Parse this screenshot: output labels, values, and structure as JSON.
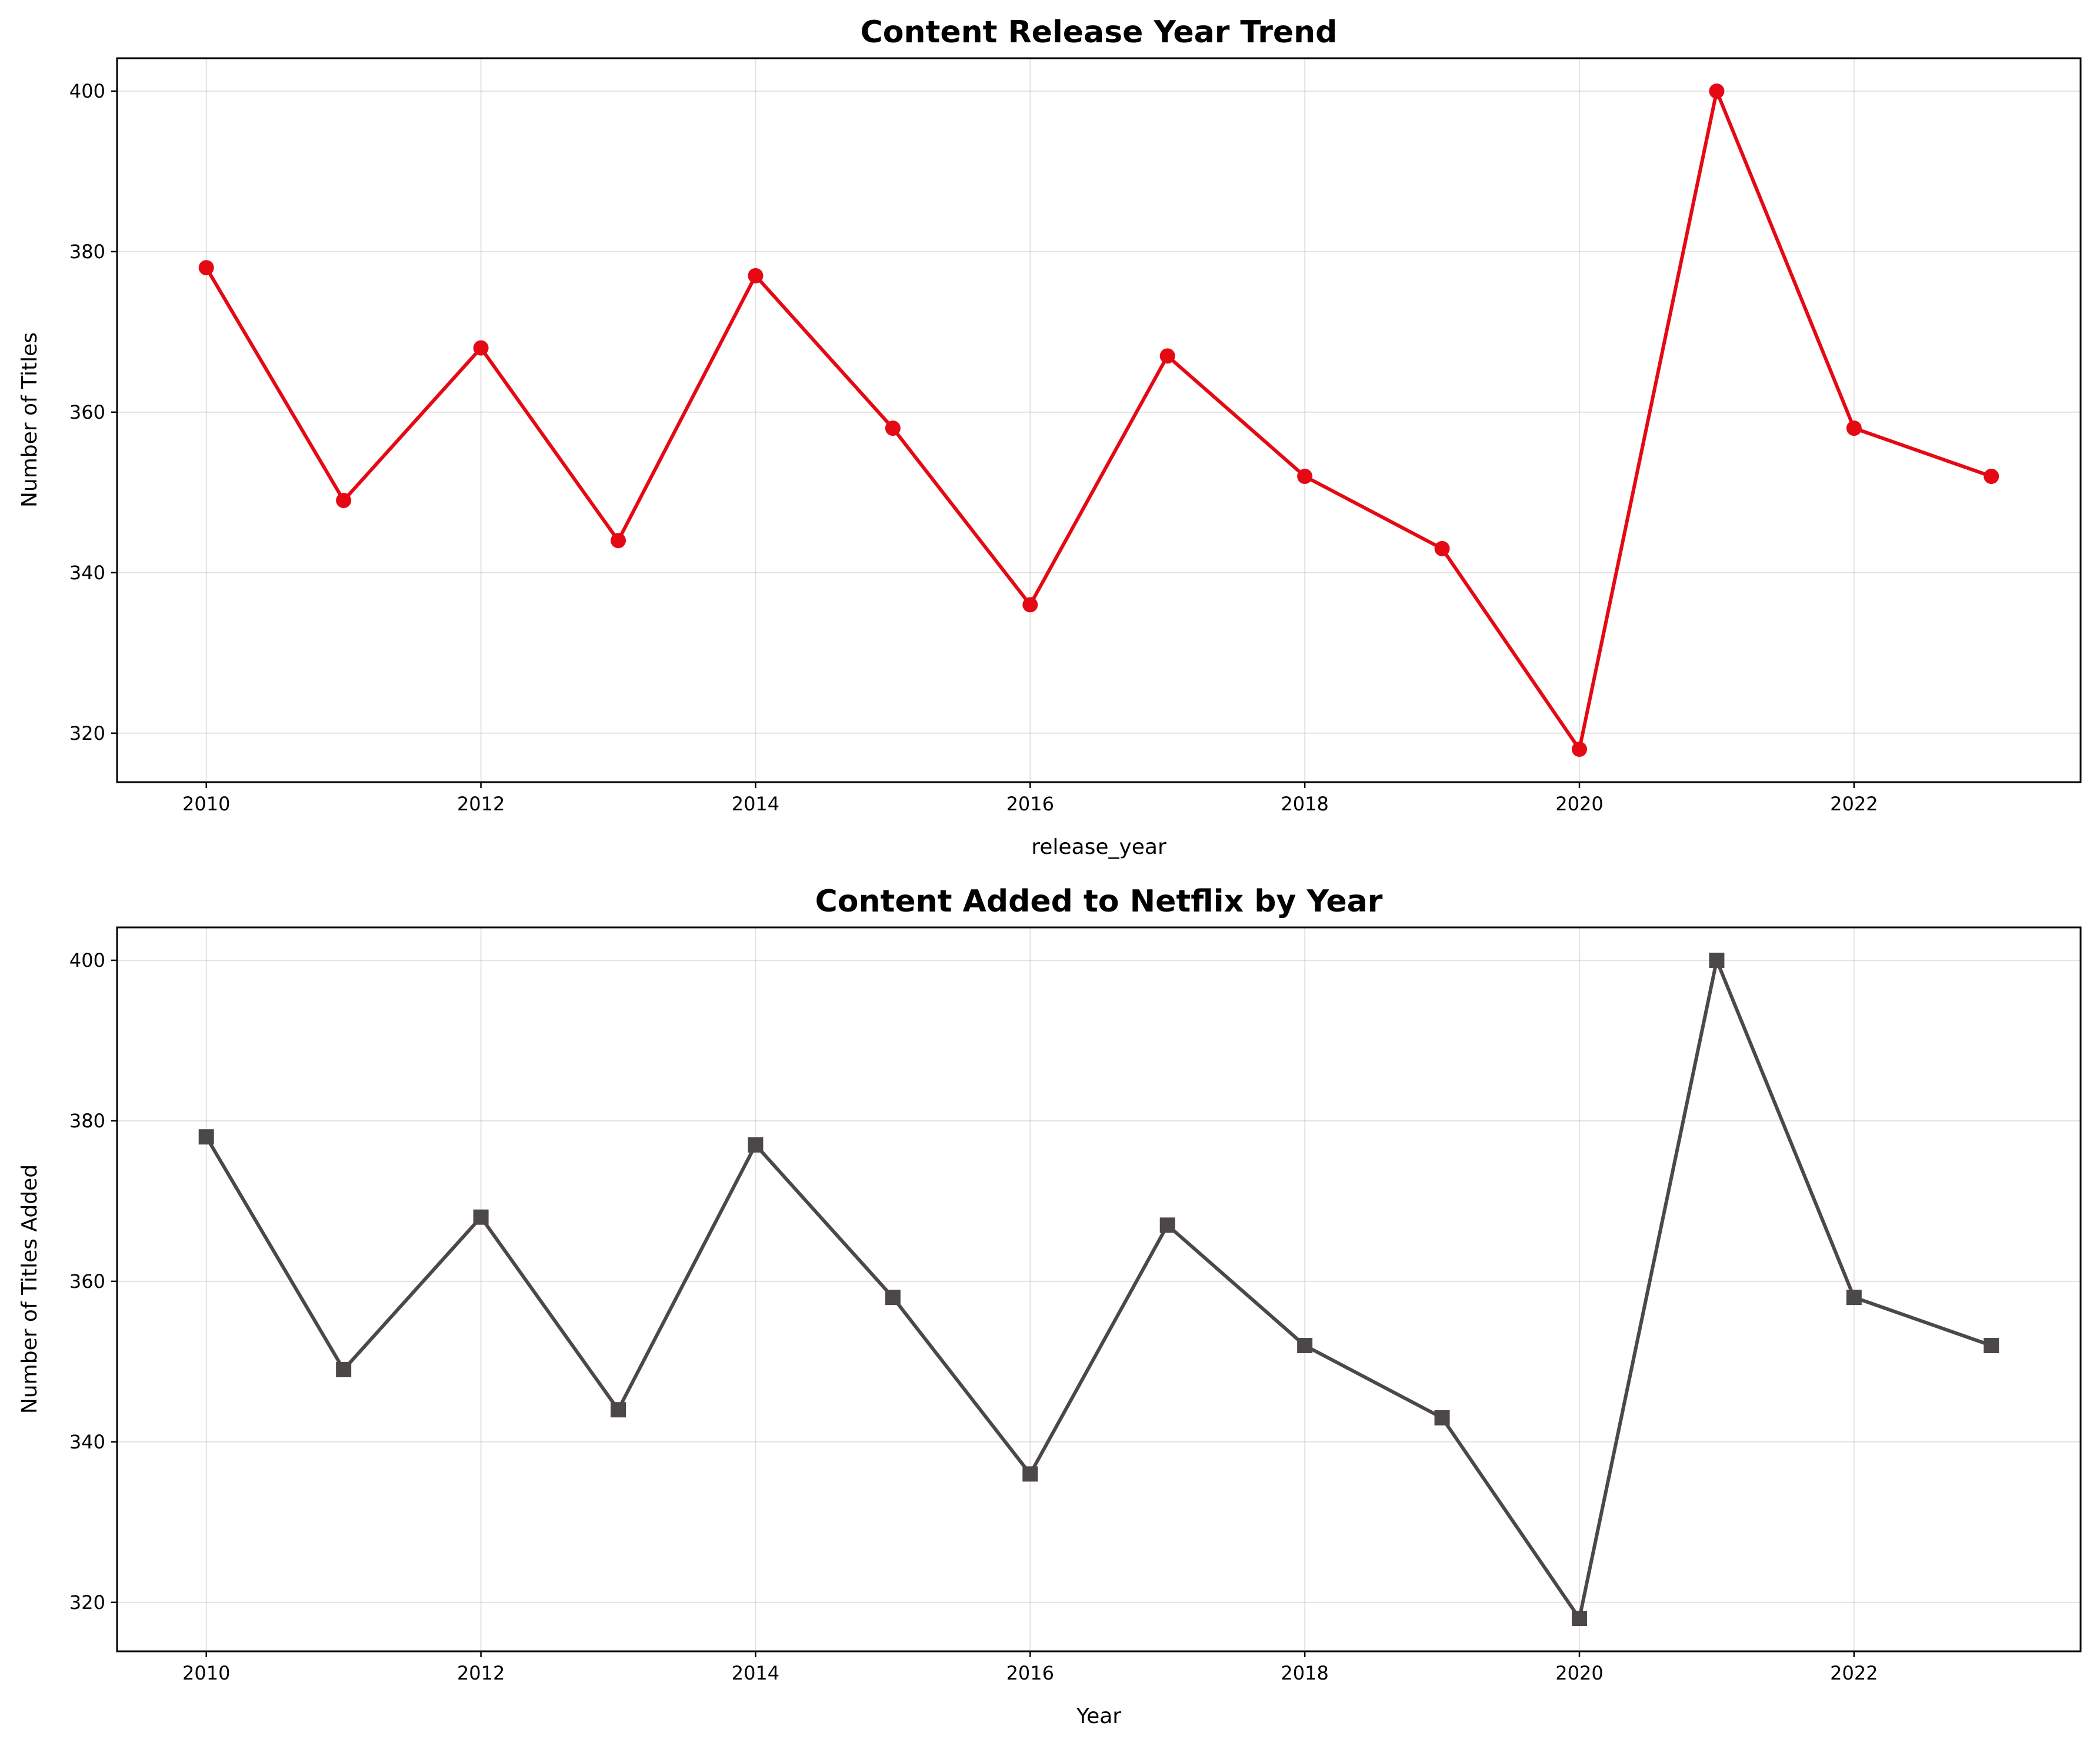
{
  "chart_data": [
    {
      "type": "line",
      "title": "Content Release Year Trend",
      "xlabel": "release_year",
      "ylabel": "Number of Titles",
      "x": [
        2010,
        2011,
        2012,
        2013,
        2014,
        2015,
        2016,
        2017,
        2018,
        2019,
        2020,
        2021,
        2022,
        2023
      ],
      "series": [
        {
          "values": [
            378,
            349,
            368,
            344,
            377,
            358,
            336,
            367,
            352,
            343,
            318,
            400,
            358,
            352
          ],
          "color": "#e50914",
          "marker": "circle"
        }
      ],
      "xlim": [
        2009.35,
        2023.65
      ],
      "ylim": [
        313.9,
        404.1
      ],
      "xticks": [
        2010,
        2012,
        2014,
        2016,
        2018,
        2020,
        2022
      ],
      "yticks": [
        320,
        340,
        360,
        380,
        400
      ],
      "grid": true
    },
    {
      "type": "line",
      "title": "Content Added to Netflix by Year",
      "xlabel": "Year",
      "ylabel": "Number of Titles Added",
      "x": [
        2010,
        2011,
        2012,
        2013,
        2014,
        2015,
        2016,
        2017,
        2018,
        2019,
        2020,
        2021,
        2022,
        2023
      ],
      "series": [
        {
          "values": [
            378,
            349,
            368,
            344,
            377,
            358,
            336,
            367,
            352,
            343,
            318,
            400,
            358,
            352
          ],
          "color": "#4d4848",
          "marker": "square"
        }
      ],
      "xlim": [
        2009.35,
        2023.65
      ],
      "ylim": [
        313.9,
        404.1
      ],
      "xticks": [
        2010,
        2012,
        2014,
        2016,
        2018,
        2020,
        2022
      ],
      "yticks": [
        320,
        340,
        360,
        380,
        400
      ],
      "grid": true
    }
  ]
}
